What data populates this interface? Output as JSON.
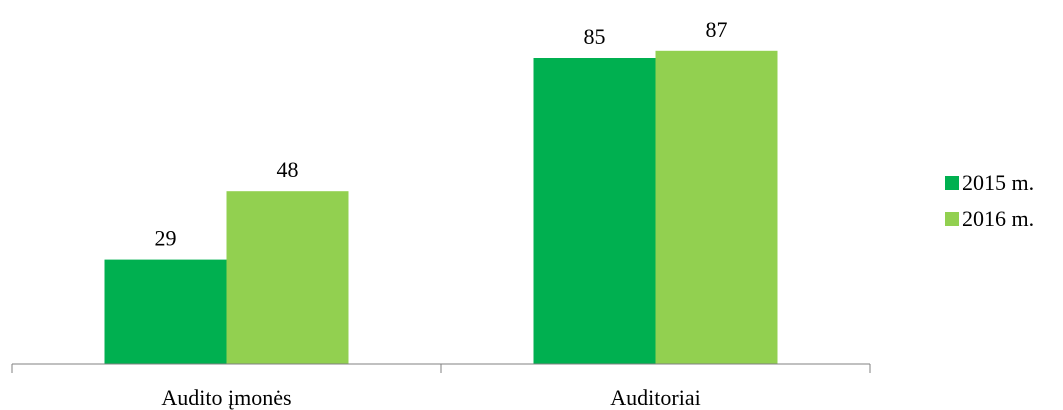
{
  "chart_data": {
    "type": "bar",
    "categories": [
      "Audito įmonės",
      "Auditoriai"
    ],
    "series": [
      {
        "name": "2015 m.",
        "values": [
          29,
          85
        ],
        "color": "#00b050"
      },
      {
        "name": "2016 m.",
        "values": [
          48,
          87
        ],
        "color": "#92d050"
      }
    ],
    "data_labels": true,
    "ylim": [
      0,
      100
    ],
    "grid": false,
    "y_axis_visible": false,
    "legend_position": "right",
    "axis_color": "#808080"
  }
}
